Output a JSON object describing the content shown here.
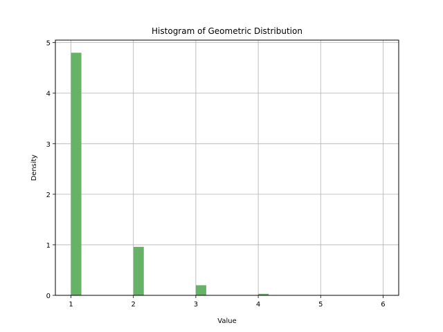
{
  "chart_data": {
    "type": "bar",
    "title": "Histogram of Geometric Distribution",
    "xlabel": "Value",
    "ylabel": "Density",
    "xlim": [
      0.75,
      6.25
    ],
    "ylim": [
      0,
      5.05
    ],
    "xticks": [
      1,
      2,
      3,
      4,
      5,
      6
    ],
    "yticks": [
      0,
      1,
      2,
      3,
      4,
      5
    ],
    "grid": true,
    "bar_color": "#66b266",
    "bin_width": 0.1667,
    "bins": [
      {
        "x0": 1.0,
        "value": 4.8
      },
      {
        "x0": 2.0,
        "value": 0.96
      },
      {
        "x0": 3.0,
        "value": 0.2
      },
      {
        "x0": 4.0,
        "value": 0.03
      }
    ]
  }
}
